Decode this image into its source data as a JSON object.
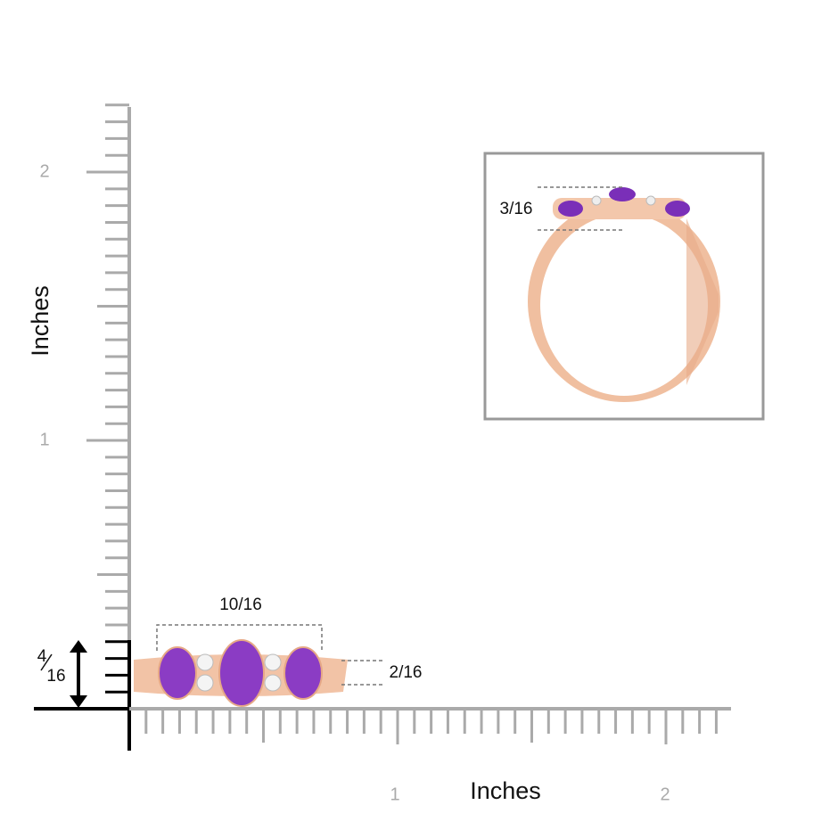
{
  "y_axis": {
    "label": "Inches",
    "ticks": [
      "1",
      "2"
    ]
  },
  "x_axis": {
    "label": "Inches",
    "ticks": [
      "1",
      "2"
    ]
  },
  "dimensions": {
    "width": "10/16",
    "height": "2/16",
    "side_height": "3/16",
    "shank": {
      "numerator": "4",
      "denominator": "16"
    }
  }
}
